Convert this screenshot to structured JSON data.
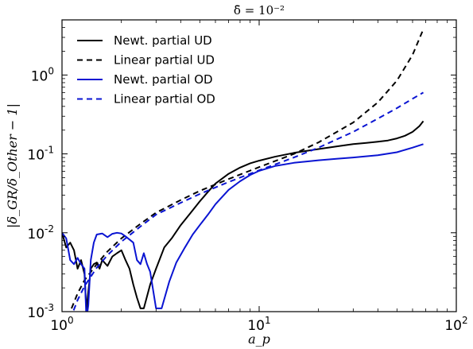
{
  "chart_data": {
    "type": "line",
    "title": "δ̄ = 10⁻²",
    "xlabel": "a_p",
    "ylabel": "|δ_GR/δ_Other − 1|",
    "xscale": "log",
    "yscale": "log",
    "xlim": [
      1,
      100
    ],
    "ylim": [
      0.001,
      5
    ],
    "x_ticks": [
      {
        "base": "10",
        "exp": "0"
      },
      {
        "base": "10",
        "exp": "1"
      },
      {
        "base": "10",
        "exp": "2"
      }
    ],
    "y_ticks": [
      {
        "value": 0.001,
        "base": "10",
        "exp": "-3"
      },
      {
        "value": 0.01,
        "base": "10",
        "exp": "-2"
      },
      {
        "value": 0.1,
        "base": "10",
        "exp": "-1"
      },
      {
        "value": 1,
        "base": "10",
        "exp": "0"
      }
    ],
    "grid": false,
    "legend_position": "top-left",
    "series": [
      {
        "name": "Newt. partial UD",
        "color": "#000000",
        "dash": "solid",
        "x": [
          1.0,
          1.05,
          1.1,
          1.15,
          1.2,
          1.25,
          1.3,
          1.33,
          1.36,
          1.4,
          1.45,
          1.5,
          1.55,
          1.6,
          1.7,
          1.8,
          1.9,
          2.0,
          2.1,
          2.2,
          2.3,
          2.4,
          2.5,
          2.6,
          2.8,
          3.0,
          3.3,
          3.6,
          4.0,
          4.5,
          5.0,
          5.5,
          6.0,
          7.0,
          8.0,
          9.0,
          10.0,
          12.0,
          15.0,
          20.0,
          25.0,
          30.0,
          35.0,
          40.0,
          45.0,
          50.0,
          55.0,
          60.0,
          65.0,
          68.0
        ],
        "y": [
          0.01,
          0.0065,
          0.0075,
          0.006,
          0.0035,
          0.0045,
          0.003,
          0.00105,
          0.0018,
          0.0035,
          0.004,
          0.0042,
          0.0035,
          0.0045,
          0.0038,
          0.005,
          0.0055,
          0.006,
          0.0045,
          0.0035,
          0.0022,
          0.0015,
          0.0011,
          0.0011,
          0.0022,
          0.0035,
          0.0065,
          0.0085,
          0.0125,
          0.018,
          0.025,
          0.033,
          0.042,
          0.056,
          0.067,
          0.076,
          0.082,
          0.092,
          0.103,
          0.115,
          0.125,
          0.133,
          0.138,
          0.143,
          0.148,
          0.157,
          0.17,
          0.19,
          0.225,
          0.26
        ]
      },
      {
        "name": "Linear partial UD",
        "color": "#000000",
        "dash": "dashed",
        "x": [
          1.0,
          1.1,
          1.2,
          1.3,
          1.5,
          1.7,
          2.0,
          2.5,
          3.0,
          4.0,
          5.0,
          7.0,
          10.0,
          15.0,
          20.0,
          30.0,
          40.0,
          50.0,
          60.0,
          68.0
        ],
        "y": [
          0.0005,
          0.001,
          0.0017,
          0.0025,
          0.004,
          0.0058,
          0.0085,
          0.013,
          0.018,
          0.026,
          0.034,
          0.048,
          0.068,
          0.1,
          0.14,
          0.25,
          0.45,
          0.85,
          1.8,
          3.8
        ]
      },
      {
        "name": "Newt. partial OD",
        "color": "#0a14d2",
        "dash": "solid",
        "x": [
          1.0,
          1.05,
          1.1,
          1.15,
          1.2,
          1.25,
          1.3,
          1.33,
          1.36,
          1.4,
          1.45,
          1.5,
          1.6,
          1.7,
          1.8,
          1.9,
          2.0,
          2.1,
          2.2,
          2.3,
          2.4,
          2.5,
          2.6,
          2.7,
          2.8,
          3.0,
          3.2,
          3.5,
          3.8,
          4.2,
          4.6,
          5.0,
          5.5,
          6.0,
          7.0,
          8.0,
          9.0,
          10.0,
          12.0,
          15.0,
          20.0,
          25.0,
          30.0,
          40.0,
          50.0,
          60.0,
          68.0
        ],
        "y": [
          0.01,
          0.0085,
          0.0045,
          0.004,
          0.0048,
          0.004,
          0.0035,
          0.0008,
          0.0012,
          0.0045,
          0.0075,
          0.0095,
          0.0098,
          0.0088,
          0.0097,
          0.01,
          0.0098,
          0.009,
          0.0082,
          0.0075,
          0.0045,
          0.004,
          0.0055,
          0.004,
          0.0032,
          0.0011,
          0.0011,
          0.0024,
          0.0042,
          0.0065,
          0.0095,
          0.0125,
          0.017,
          0.023,
          0.035,
          0.045,
          0.054,
          0.061,
          0.07,
          0.077,
          0.083,
          0.087,
          0.09,
          0.096,
          0.105,
          0.12,
          0.133
        ]
      },
      {
        "name": "Linear partial OD",
        "color": "#0a14d2",
        "dash": "dashed",
        "x": [
          1.1,
          1.2,
          1.3,
          1.5,
          1.7,
          2.0,
          2.5,
          3.0,
          4.0,
          5.0,
          7.0,
          10.0,
          15.0,
          20.0,
          30.0,
          40.0,
          50.0,
          60.0,
          68.0
        ],
        "y": [
          0.0008,
          0.0014,
          0.0021,
          0.0036,
          0.0052,
          0.0077,
          0.012,
          0.017,
          0.024,
          0.031,
          0.044,
          0.062,
          0.09,
          0.12,
          0.19,
          0.28,
          0.38,
          0.5,
          0.6
        ]
      }
    ]
  }
}
